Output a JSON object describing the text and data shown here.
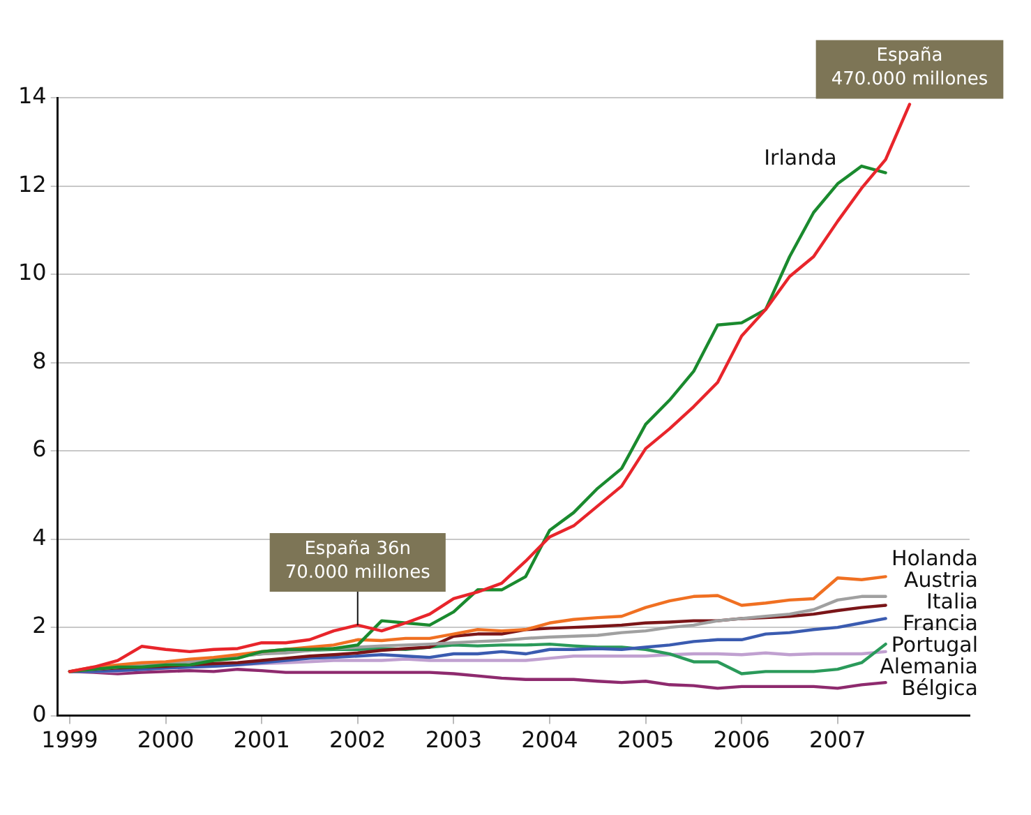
{
  "chart_data": {
    "type": "line",
    "x": [
      1999,
      1999.25,
      1999.5,
      1999.75,
      2000,
      2000.25,
      2000.5,
      2000.75,
      2001,
      2001.25,
      2001.5,
      2001.75,
      2002,
      2002.25,
      2002.5,
      2002.75,
      2003,
      2003.25,
      2003.5,
      2003.75,
      2004,
      2004.25,
      2004.5,
      2004.75,
      2005,
      2005.25,
      2005.5,
      2005.75,
      2006,
      2006.25,
      2006.5,
      2006.75,
      2007,
      2007.25,
      2007.5,
      2007.75
    ],
    "series": [
      {
        "color": "#e8252b",
        "values": [
          1.0,
          1.1,
          1.25,
          1.57,
          1.5,
          1.45,
          1.5,
          1.52,
          1.65,
          1.65,
          1.72,
          1.92,
          2.05,
          1.92,
          2.1,
          2.3,
          2.65,
          2.8,
          3.0,
          3.5,
          4.05,
          4.3,
          4.75,
          5.2,
          6.05,
          6.5,
          7.0,
          7.55,
          8.6,
          9.2,
          9.95,
          10.4,
          11.2,
          11.95,
          12.6,
          13.85
        ]
      },
      {
        "name": "Irlanda",
        "color": "#1a8a2e",
        "values": [
          1.0,
          1.05,
          1.1,
          1.1,
          1.15,
          1.15,
          1.25,
          1.3,
          1.45,
          1.5,
          1.5,
          1.52,
          1.6,
          2.15,
          2.1,
          2.05,
          2.35,
          2.85,
          2.85,
          3.15,
          4.2,
          4.6,
          5.15,
          5.6,
          6.6,
          7.15,
          7.8,
          8.85,
          8.9,
          9.2,
          10.4,
          11.4,
          12.05,
          12.45,
          12.3,
          null
        ]
      },
      {
        "name": "Holanda",
        "color": "#f07022",
        "values": [
          1.0,
          1.1,
          1.15,
          1.2,
          1.22,
          1.28,
          1.32,
          1.38,
          1.45,
          1.5,
          1.55,
          1.6,
          1.72,
          1.7,
          1.75,
          1.75,
          1.85,
          1.95,
          1.92,
          1.95,
          2.1,
          2.18,
          2.22,
          2.25,
          2.45,
          2.6,
          2.7,
          2.72,
          2.5,
          2.55,
          2.62,
          2.65,
          3.12,
          3.08,
          3.15,
          null
        ]
      },
      {
        "name": "Austria",
        "color": "#a0a0a0",
        "values": [
          1.0,
          1.05,
          1.1,
          1.15,
          1.18,
          1.22,
          1.28,
          1.35,
          1.4,
          1.42,
          1.48,
          1.52,
          1.55,
          1.58,
          1.6,
          1.62,
          1.65,
          1.68,
          1.7,
          1.75,
          1.78,
          1.8,
          1.82,
          1.88,
          1.92,
          2.0,
          2.05,
          2.15,
          2.2,
          2.25,
          2.3,
          2.4,
          2.62,
          2.7,
          2.7,
          null
        ]
      },
      {
        "name": "Italia",
        "color": "#7a1518",
        "values": [
          1.0,
          1.05,
          1.08,
          1.1,
          1.12,
          1.15,
          1.18,
          1.2,
          1.25,
          1.3,
          1.35,
          1.38,
          1.42,
          1.48,
          1.52,
          1.55,
          1.8,
          1.85,
          1.85,
          1.95,
          1.98,
          2.0,
          2.02,
          2.05,
          2.1,
          2.12,
          2.15,
          2.15,
          2.2,
          2.22,
          2.25,
          2.3,
          2.38,
          2.45,
          2.5,
          null
        ]
      },
      {
        "name": "Francia",
        "color": "#3a5bb0",
        "values": [
          1.0,
          1.0,
          1.02,
          1.05,
          1.08,
          1.1,
          1.12,
          1.15,
          1.2,
          1.25,
          1.3,
          1.32,
          1.35,
          1.38,
          1.35,
          1.32,
          1.4,
          1.4,
          1.45,
          1.4,
          1.5,
          1.5,
          1.52,
          1.5,
          1.55,
          1.6,
          1.68,
          1.72,
          1.72,
          1.85,
          1.88,
          1.95,
          2.0,
          2.1,
          2.2,
          null
        ]
      },
      {
        "name": "Portugal",
        "color": "#2a9a5a",
        "values": [
          1.0,
          1.05,
          1.1,
          1.15,
          1.2,
          1.25,
          1.28,
          1.35,
          1.4,
          1.45,
          1.48,
          1.5,
          1.5,
          1.52,
          1.5,
          1.55,
          1.6,
          1.58,
          1.6,
          1.6,
          1.62,
          1.58,
          1.55,
          1.55,
          1.5,
          1.4,
          1.22,
          1.22,
          0.95,
          1.0,
          1.0,
          1.0,
          1.05,
          1.2,
          1.62,
          null
        ]
      },
      {
        "name": "Alemania",
        "color": "#c0a0d0",
        "values": [
          1.0,
          1.0,
          1.0,
          1.05,
          1.08,
          1.1,
          1.12,
          1.15,
          1.18,
          1.2,
          1.22,
          1.25,
          1.25,
          1.25,
          1.28,
          1.25,
          1.25,
          1.25,
          1.25,
          1.25,
          1.3,
          1.35,
          1.35,
          1.35,
          1.35,
          1.38,
          1.4,
          1.4,
          1.38,
          1.42,
          1.38,
          1.4,
          1.4,
          1.4,
          1.45,
          null
        ]
      },
      {
        "name": "Bélgica",
        "color": "#8e2a6e",
        "values": [
          1.0,
          0.98,
          0.95,
          0.98,
          1.0,
          1.02,
          1.0,
          1.05,
          1.02,
          0.98,
          0.98,
          0.98,
          0.98,
          0.98,
          0.98,
          0.98,
          0.95,
          0.9,
          0.85,
          0.82,
          0.82,
          0.82,
          0.78,
          0.75,
          0.78,
          0.7,
          0.68,
          0.62,
          0.66,
          0.66,
          0.66,
          0.66,
          0.62,
          0.7,
          0.75,
          null
        ]
      }
    ],
    "xlim": [
      1998.875,
      2008.375
    ],
    "xticks": [
      1999,
      2000,
      2001,
      2002,
      2003,
      2004,
      2005,
      2006,
      2007
    ],
    "ylim": [
      0,
      14
    ],
    "yticks": [
      0,
      2,
      4,
      6,
      8,
      10,
      12,
      14
    ],
    "grid": "y",
    "legend": false,
    "marker": "none",
    "line_style": "solid",
    "annotations": [
      {
        "text": "España\n470.000 millones",
        "x": 2007.75,
        "y": 13.85
      },
      {
        "text": "España 36n\n70.000 millones",
        "x": 2002,
        "y": 2.05
      }
    ]
  }
}
